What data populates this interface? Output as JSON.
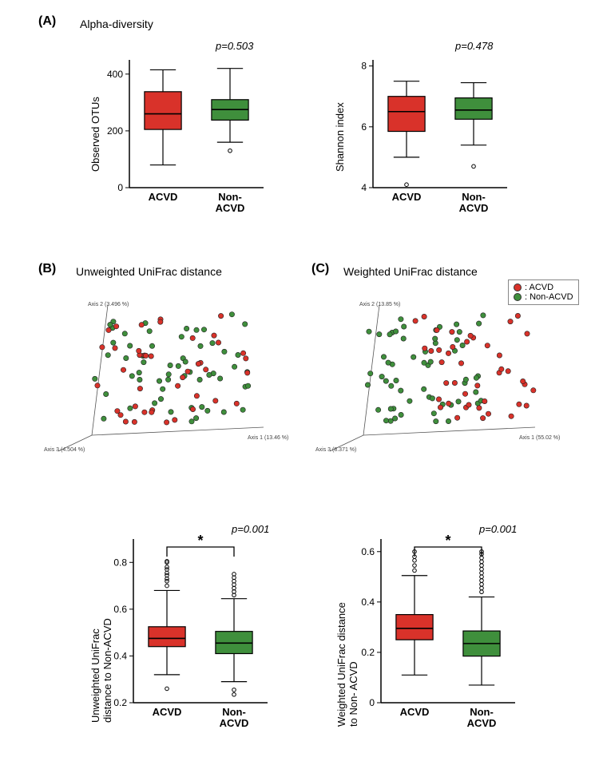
{
  "colors": {
    "acvd": "#d9322a",
    "nonacvd": "#3f8f3c",
    "axis": "#000000",
    "bg": "#ffffff"
  },
  "labels": {
    "panelA": "(A)",
    "panelB": "(B)",
    "panelC": "(C)",
    "titleA": "Alpha-diversity",
    "titleB": "Unweighted UniFrac distance",
    "titleC": "Weighted UniFrac distance",
    "acvd": "ACVD",
    "nonacvd": "Non-\nACVD",
    "nonacvd_one": "Non-ACVD",
    "legend_acvd": ": ACVD",
    "legend_nonacvd": ": Non-ACVD"
  },
  "panelA": {
    "left": {
      "ylabel": "Observed OTUs",
      "pvalue": "p=0.503",
      "ylim": [
        0,
        450
      ],
      "yticks": [
        0,
        200,
        400
      ],
      "boxes": [
        {
          "group": "ACVD",
          "color": "acvd",
          "q1": 205,
          "median": 260,
          "q3": 338,
          "whisker_lo": 80,
          "whisker_hi": 415,
          "outliers": []
        },
        {
          "group": "Non-ACVD",
          "color": "nonacvd",
          "q1": 238,
          "median": 275,
          "q3": 310,
          "whisker_lo": 160,
          "whisker_hi": 420,
          "outliers": [
            130
          ]
        }
      ]
    },
    "right": {
      "ylabel": "Shannon index",
      "pvalue": "p=0.478",
      "ylim": [
        4.0,
        8.2
      ],
      "yticks": [
        4.0,
        6.0,
        8.0
      ],
      "boxes": [
        {
          "group": "ACVD",
          "color": "acvd",
          "q1": 5.85,
          "median": 6.5,
          "q3": 7.0,
          "whisker_lo": 5.0,
          "whisker_hi": 7.5,
          "outliers": [
            4.1
          ]
        },
        {
          "group": "Non-ACVD",
          "color": "nonacvd",
          "q1": 6.25,
          "median": 6.55,
          "q3": 6.95,
          "whisker_lo": 5.4,
          "whisker_hi": 7.45,
          "outliers": [
            4.7
          ]
        }
      ]
    }
  },
  "panelB": {
    "axis_labels": {
      "x": "Axis 1 (13.46 %)",
      "y": "Axis 2 (3.496 %)",
      "z": "Axis 3 (4.504 %)"
    },
    "box": {
      "ylabel": "Unweighted UniFrac\ndistance  to  Non-ACVD",
      "pvalue": "p=0.001",
      "ylim": [
        0.2,
        0.9
      ],
      "yticks": [
        0.2,
        0.4,
        0.6,
        0.8
      ],
      "sig": true,
      "boxes": [
        {
          "group": "ACVD",
          "color": "acvd",
          "q1": 0.44,
          "median": 0.475,
          "q3": 0.525,
          "whisker_lo": 0.32,
          "whisker_hi": 0.68,
          "outliers": [
            0.26,
            0.7,
            0.72,
            0.73,
            0.745,
            0.755,
            0.77,
            0.78,
            0.8,
            0.805
          ]
        },
        {
          "group": "Non-ACVD",
          "color": "nonacvd",
          "q1": 0.41,
          "median": 0.455,
          "q3": 0.505,
          "whisker_lo": 0.29,
          "whisker_hi": 0.645,
          "outliers": [
            0.235,
            0.255,
            0.66,
            0.675,
            0.69,
            0.705,
            0.72,
            0.735,
            0.75
          ]
        }
      ]
    },
    "scatter": {
      "n_acvd": 42,
      "n_nonacvd": 58,
      "seed": 11
    }
  },
  "panelC": {
    "axis_labels": {
      "x": "Axis 1 (55.02 %)",
      "y": "Axis 2 (13.85 %)",
      "z": "Axis 3 (8.371 %)"
    },
    "box": {
      "ylabel": "Weighted UniFrac distance\nto Non- ACVD",
      "pvalue": "p=0.001",
      "ylim": [
        0,
        0.65
      ],
      "yticks": [
        0,
        0.2,
        0.4,
        0.6
      ],
      "sig": true,
      "boxes": [
        {
          "group": "ACVD",
          "color": "acvd",
          "q1": 0.25,
          "median": 0.295,
          "q3": 0.35,
          "whisker_lo": 0.11,
          "whisker_hi": 0.505,
          "outliers": [
            0.525,
            0.545,
            0.565,
            0.58,
            0.6
          ]
        },
        {
          "group": "Non-ACVD",
          "color": "nonacvd",
          "q1": 0.185,
          "median": 0.235,
          "q3": 0.285,
          "whisker_lo": 0.07,
          "whisker_hi": 0.42,
          "outliers": [
            0.44,
            0.455,
            0.47,
            0.485,
            0.5,
            0.515,
            0.53,
            0.545,
            0.56,
            0.575,
            0.59,
            0.6
          ]
        }
      ]
    },
    "scatter": {
      "n_acvd": 42,
      "n_nonacvd": 58,
      "seed": 27
    }
  }
}
